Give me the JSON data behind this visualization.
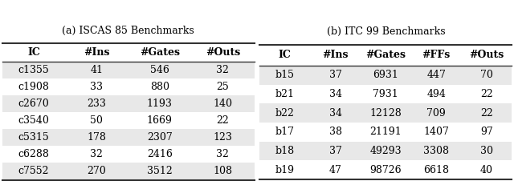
{
  "title_a": "(a) ISCAS 85 Benchmarks",
  "title_b": "(b) ITC 99 Benchmarks",
  "table_a_headers": [
    "IC",
    "#Ins",
    "#Gates",
    "#Outs"
  ],
  "table_a_rows": [
    [
      "c1355",
      "41",
      "546",
      "32"
    ],
    [
      "c1908",
      "33",
      "880",
      "25"
    ],
    [
      "c2670",
      "233",
      "1193",
      "140"
    ],
    [
      "c3540",
      "50",
      "1669",
      "22"
    ],
    [
      "c5315",
      "178",
      "2307",
      "123"
    ],
    [
      "c6288",
      "32",
      "2416",
      "32"
    ],
    [
      "c7552",
      "270",
      "3512",
      "108"
    ]
  ],
  "table_b_headers": [
    "IC",
    "#Ins",
    "#Gates",
    "#FFs",
    "#Outs"
  ],
  "table_b_rows": [
    [
      "b15",
      "37",
      "6931",
      "447",
      "70"
    ],
    [
      "b21",
      "34",
      "7931",
      "494",
      "22"
    ],
    [
      "b22",
      "34",
      "12128",
      "709",
      "22"
    ],
    [
      "b17",
      "38",
      "21191",
      "1407",
      "97"
    ],
    [
      "b18",
      "37",
      "49293",
      "3308",
      "30"
    ],
    [
      "b19",
      "47",
      "98726",
      "6618",
      "40"
    ]
  ],
  "row_color_odd": "#e8e8e8",
  "row_color_even": "#ffffff",
  "line_color": "#333333",
  "bg_color": "#ffffff",
  "font_size": 9,
  "title_font_size": 9
}
